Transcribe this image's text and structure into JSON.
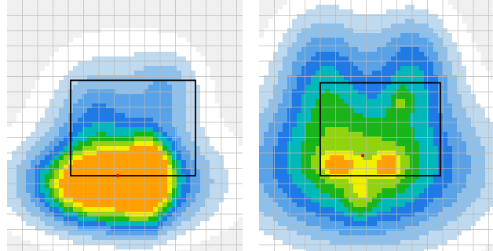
{
  "chart_data": [
    {
      "type": "heatmap",
      "grid": true,
      "box_bounds": {
        "x": [
          0.27,
          0.8
        ],
        "y": [
          0.32,
          0.7
        ]
      },
      "center_marker": {
        "x": 0.47,
        "y": 0.7
      },
      "blobs": [
        {
          "x": 0.43,
          "y": 0.73,
          "sx": 0.16,
          "sy": 0.09,
          "peak": 0.93
        },
        {
          "x": 0.34,
          "y": 0.73,
          "sx": 0.08,
          "sy": 0.055,
          "peak": 0.35
        },
        {
          "x": 0.59,
          "y": 0.72,
          "sx": 0.06,
          "sy": 0.1,
          "peak": 0.78
        },
        {
          "x": 0.62,
          "y": 0.66,
          "sx": 0.05,
          "sy": 0.07,
          "peak": 0.25
        },
        {
          "x": 0.47,
          "y": 0.73,
          "sx": 0.26,
          "sy": 0.13,
          "peak": 0.35
        },
        {
          "x": 0.47,
          "y": 0.5,
          "sx": 0.2,
          "sy": 0.2,
          "peak": 0.18
        },
        {
          "x": 0.37,
          "y": 0.48,
          "sx": 0.09,
          "sy": 0.12,
          "peak": 0.14
        },
        {
          "x": 0.68,
          "y": 0.35,
          "sx": 0.09,
          "sy": 0.1,
          "peak": 0.14
        }
      ]
    },
    {
      "type": "heatmap",
      "grid": true,
      "box_bounds": {
        "x": [
          0.26,
          0.77
        ],
        "y": [
          0.33,
          0.7
        ]
      },
      "center_marker": {
        "x": 0.44,
        "y": 0.62
      },
      "blobs": [
        {
          "x": 0.44,
          "y": 0.67,
          "sx": 0.3,
          "sy": 0.17,
          "peak": 0.55
        },
        {
          "x": 0.33,
          "y": 0.66,
          "sx": 0.05,
          "sy": 0.035,
          "peak": 0.32
        },
        {
          "x": 0.55,
          "y": 0.66,
          "sx": 0.04,
          "sy": 0.04,
          "peak": 0.37
        },
        {
          "x": 0.43,
          "y": 0.79,
          "sx": 0.04,
          "sy": 0.06,
          "peak": 0.2
        },
        {
          "x": 0.28,
          "y": 0.33,
          "sx": 0.12,
          "sy": 0.17,
          "peak": 0.32
        },
        {
          "x": 0.65,
          "y": 0.3,
          "sx": 0.11,
          "sy": 0.15,
          "peak": 0.32
        },
        {
          "x": 0.6,
          "y": 0.41,
          "sx": 0.03,
          "sy": 0.04,
          "peak": 0.15
        },
        {
          "x": 0.46,
          "y": 0.55,
          "sx": 0.3,
          "sy": 0.3,
          "peak": 0.1
        }
      ]
    }
  ],
  "palette": {
    "background": "#f0f0f0",
    "grid": "#b8b8b8",
    "levels": [
      "#ffffff",
      "#bfd9ef",
      "#8ec0ea",
      "#5aa2e8",
      "#1f7ae6",
      "#00b8b8",
      "#18b418",
      "#90d410",
      "#f0f000",
      "#ffa000",
      "#ff0000"
    ],
    "box": "#000000",
    "marker": "#e00000"
  }
}
